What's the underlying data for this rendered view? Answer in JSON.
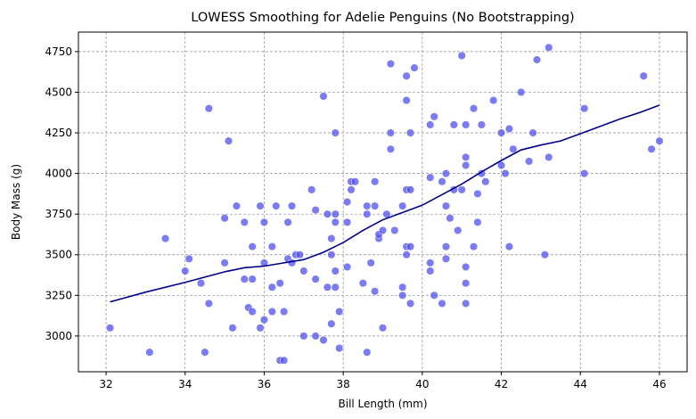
{
  "chart_data": {
    "type": "scatter",
    "title": "LOWESS Smoothing for Adelie Penguins (No Bootstrapping)",
    "xlabel": "Bill Length (mm)",
    "ylabel": "Body Mass (g)",
    "xlim": [
      31.3,
      46.7
    ],
    "ylim": [
      2780,
      4870
    ],
    "xticks": [
      32,
      34,
      36,
      38,
      40,
      42,
      44,
      46
    ],
    "yticks": [
      3000,
      3250,
      3500,
      3750,
      4000,
      4250,
      4500,
      4750
    ],
    "grid": true,
    "point_color": "#4f4fef",
    "line_color": "#00008b",
    "series": [
      {
        "type": "scatter",
        "points": [
          [
            32.1,
            3050
          ],
          [
            33.1,
            2900
          ],
          [
            33.5,
            3600
          ],
          [
            34.0,
            3400
          ],
          [
            34.1,
            3475
          ],
          [
            34.4,
            3325
          ],
          [
            34.5,
            2900
          ],
          [
            34.6,
            3200
          ],
          [
            34.6,
            4400
          ],
          [
            35.0,
            3450
          ],
          [
            35.0,
            3725
          ],
          [
            35.1,
            4200
          ],
          [
            35.2,
            3050
          ],
          [
            35.3,
            3800
          ],
          [
            35.5,
            3700
          ],
          [
            35.5,
            3350
          ],
          [
            35.6,
            3175
          ],
          [
            35.7,
            3550
          ],
          [
            35.7,
            3350
          ],
          [
            35.7,
            3150
          ],
          [
            35.9,
            3800
          ],
          [
            35.9,
            3050
          ],
          [
            36.0,
            3450
          ],
          [
            36.0,
            3100
          ],
          [
            36.0,
            3700
          ],
          [
            36.2,
            3550
          ],
          [
            36.2,
            3300
          ],
          [
            36.2,
            3150
          ],
          [
            36.3,
            3800
          ],
          [
            36.4,
            3325
          ],
          [
            36.4,
            2850
          ],
          [
            36.5,
            3150
          ],
          [
            36.5,
            2850
          ],
          [
            36.6,
            3700
          ],
          [
            36.6,
            3475
          ],
          [
            36.7,
            3450
          ],
          [
            36.7,
            3800
          ],
          [
            36.8,
            3500
          ],
          [
            36.9,
            3500
          ],
          [
            37.0,
            3400
          ],
          [
            37.0,
            3000
          ],
          [
            37.2,
            3900
          ],
          [
            37.3,
            3775
          ],
          [
            37.3,
            3350
          ],
          [
            37.3,
            3000
          ],
          [
            37.5,
            2975
          ],
          [
            37.5,
            4475
          ],
          [
            37.6,
            3300
          ],
          [
            37.6,
            3750
          ],
          [
            37.7,
            3600
          ],
          [
            37.7,
            3500
          ],
          [
            37.7,
            3075
          ],
          [
            37.8,
            3700
          ],
          [
            37.8,
            3300
          ],
          [
            37.8,
            3400
          ],
          [
            37.8,
            3750
          ],
          [
            37.8,
            4250
          ],
          [
            37.9,
            3150
          ],
          [
            37.9,
            2925
          ],
          [
            38.1,
            3700
          ],
          [
            38.1,
            3825
          ],
          [
            38.1,
            3425
          ],
          [
            38.2,
            3900
          ],
          [
            38.2,
            3950
          ],
          [
            38.3,
            3950
          ],
          [
            38.5,
            3325
          ],
          [
            38.6,
            3800
          ],
          [
            38.6,
            3750
          ],
          [
            38.6,
            2900
          ],
          [
            38.7,
            3450
          ],
          [
            38.8,
            3950
          ],
          [
            38.8,
            3800
          ],
          [
            38.8,
            3275
          ],
          [
            38.9,
            3600
          ],
          [
            38.9,
            3625
          ],
          [
            39.0,
            3650
          ],
          [
            39.0,
            3050
          ],
          [
            39.1,
            3750
          ],
          [
            39.2,
            4675
          ],
          [
            39.2,
            4250
          ],
          [
            39.2,
            4150
          ],
          [
            39.3,
            3650
          ],
          [
            39.5,
            3800
          ],
          [
            39.5,
            3300
          ],
          [
            39.5,
            3250
          ],
          [
            39.6,
            3500
          ],
          [
            39.6,
            4600
          ],
          [
            39.6,
            3550
          ],
          [
            39.6,
            4450
          ],
          [
            39.6,
            3900
          ],
          [
            39.7,
            3550
          ],
          [
            39.7,
            3200
          ],
          [
            39.7,
            3900
          ],
          [
            39.7,
            4250
          ],
          [
            39.8,
            4650
          ],
          [
            40.2,
            4300
          ],
          [
            40.2,
            3975
          ],
          [
            40.2,
            3400
          ],
          [
            40.2,
            3450
          ],
          [
            40.3,
            4350
          ],
          [
            40.3,
            3250
          ],
          [
            40.5,
            3950
          ],
          [
            40.5,
            3200
          ],
          [
            40.6,
            3800
          ],
          [
            40.6,
            3550
          ],
          [
            40.6,
            3475
          ],
          [
            40.6,
            4000
          ],
          [
            40.7,
            3725
          ],
          [
            40.8,
            4300
          ],
          [
            40.8,
            3900
          ],
          [
            40.9,
            3650
          ],
          [
            41.0,
            3900
          ],
          [
            41.0,
            4725
          ],
          [
            41.1,
            4300
          ],
          [
            41.1,
            3200
          ],
          [
            41.1,
            4100
          ],
          [
            41.1,
            3325
          ],
          [
            41.1,
            4050
          ],
          [
            41.1,
            3425
          ],
          [
            41.3,
            3550
          ],
          [
            41.3,
            4400
          ],
          [
            41.4,
            3875
          ],
          [
            41.4,
            3700
          ],
          [
            41.5,
            4300
          ],
          [
            41.5,
            4000
          ],
          [
            41.6,
            3950
          ],
          [
            41.8,
            4450
          ],
          [
            42.0,
            4050
          ],
          [
            42.0,
            4250
          ],
          [
            42.1,
            4000
          ],
          [
            42.2,
            4275
          ],
          [
            42.2,
            3550
          ],
          [
            42.3,
            4150
          ],
          [
            42.5,
            4500
          ],
          [
            42.7,
            4075
          ],
          [
            42.8,
            4250
          ],
          [
            42.9,
            4700
          ],
          [
            43.1,
            3500
          ],
          [
            43.2,
            4775
          ],
          [
            43.2,
            4100
          ],
          [
            44.1,
            4400
          ],
          [
            44.1,
            4000
          ],
          [
            45.6,
            4600
          ],
          [
            45.8,
            4150
          ],
          [
            46.0,
            4200
          ]
        ]
      },
      {
        "type": "line",
        "points": [
          [
            32.1,
            3210
          ],
          [
            33.0,
            3270
          ],
          [
            34.0,
            3330
          ],
          [
            35.0,
            3395
          ],
          [
            35.5,
            3420
          ],
          [
            36.0,
            3430
          ],
          [
            36.5,
            3450
          ],
          [
            37.0,
            3470
          ],
          [
            37.5,
            3515
          ],
          [
            38.0,
            3575
          ],
          [
            38.5,
            3650
          ],
          [
            39.0,
            3715
          ],
          [
            39.5,
            3760
          ],
          [
            40.0,
            3805
          ],
          [
            40.5,
            3870
          ],
          [
            41.0,
            3935
          ],
          [
            41.5,
            4010
          ],
          [
            42.0,
            4080
          ],
          [
            42.5,
            4145
          ],
          [
            43.0,
            4175
          ],
          [
            43.5,
            4200
          ],
          [
            44.0,
            4245
          ],
          [
            44.5,
            4290
          ],
          [
            45.0,
            4335
          ],
          [
            45.5,
            4375
          ],
          [
            46.0,
            4420
          ]
        ]
      }
    ]
  }
}
